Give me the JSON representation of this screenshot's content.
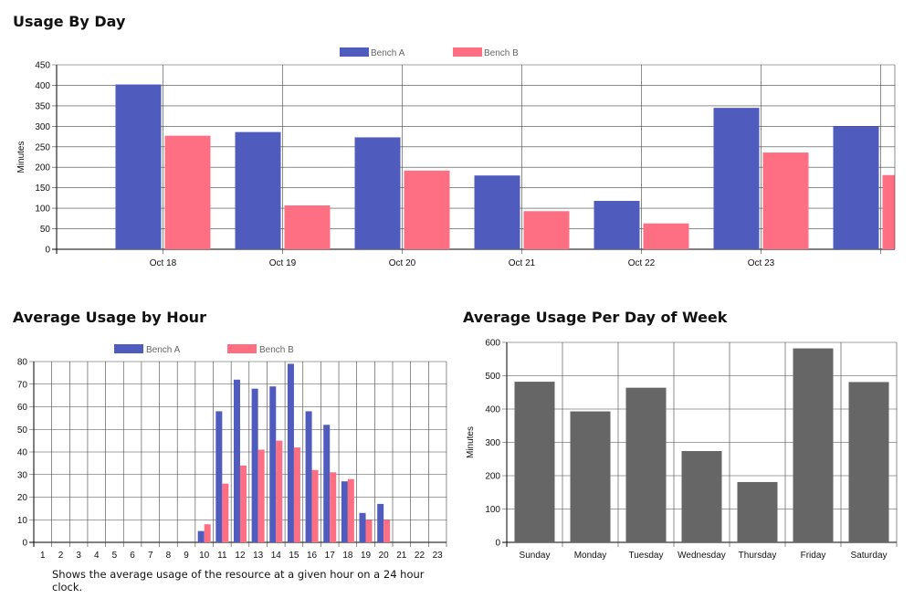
{
  "titles": {
    "usage_by_day": "Usage By Day",
    "usage_by_hour": "Average Usage by Hour",
    "usage_per_weekday": "Average Usage Per Day of Week"
  },
  "hour_caption": "Shows the average usage of the resource at a given hour on a 24 hour clock.",
  "chart_data": [
    {
      "type": "bar",
      "title": "Usage By Day",
      "xlabel": "",
      "ylabel": "Minutes",
      "ylim": [
        0,
        450
      ],
      "yticks": [
        0,
        50,
        100,
        150,
        200,
        250,
        300,
        350,
        400,
        450
      ],
      "grid": true,
      "legend": "top",
      "categories": [
        "Oct 18",
        "Oct 19",
        "Oct 20",
        "Oct 21",
        "Oct 22",
        "Oct 23",
        ""
      ],
      "series": [
        {
          "name": "Bench A",
          "color": "#4f5bbd",
          "values": [
            402,
            286,
            273,
            180,
            118,
            345,
            300
          ]
        },
        {
          "name": "Bench B",
          "color": "#ff6f83",
          "values": [
            277,
            107,
            192,
            93,
            63,
            236,
            181
          ]
        }
      ]
    },
    {
      "type": "bar",
      "title": "Average Usage by Hour",
      "xlabel": "",
      "ylabel": "",
      "ylim": [
        0,
        80
      ],
      "yticks": [
        0,
        10,
        20,
        30,
        40,
        50,
        60,
        70,
        80
      ],
      "grid": true,
      "legend": "top",
      "categories": [
        "1",
        "2",
        "3",
        "4",
        "5",
        "6",
        "7",
        "8",
        "9",
        "10",
        "11",
        "12",
        "13",
        "14",
        "15",
        "16",
        "17",
        "18",
        "19",
        "20",
        "21",
        "22",
        "23"
      ],
      "series": [
        {
          "name": "Bench A",
          "color": "#4f5bbd",
          "values": [
            0,
            0,
            0,
            0,
            0,
            0,
            0,
            0,
            0,
            5,
            58,
            72,
            68,
            69,
            79,
            58,
            52,
            27,
            13,
            17,
            0,
            0,
            0
          ]
        },
        {
          "name": "Bench B",
          "color": "#ff6f83",
          "values": [
            0,
            0,
            0,
            0,
            0,
            0,
            0,
            0,
            0,
            8,
            26,
            34,
            41,
            45,
            42,
            32,
            31,
            28,
            10,
            10,
            0,
            0,
            0
          ]
        }
      ]
    },
    {
      "type": "bar",
      "title": "Average Usage Per Day of Week",
      "xlabel": "",
      "ylabel": "Minutes",
      "ylim": [
        0,
        600
      ],
      "yticks": [
        0,
        100,
        200,
        300,
        400,
        500,
        600
      ],
      "grid": true,
      "legend": "none",
      "categories": [
        "Sunday",
        "Monday",
        "Tuesday",
        "Wednesday",
        "Thursday",
        "Friday",
        "Saturday"
      ],
      "series": [
        {
          "name": "Minutes",
          "color": "#666666",
          "values": [
            482,
            393,
            464,
            274,
            181,
            582,
            481
          ]
        }
      ]
    }
  ]
}
